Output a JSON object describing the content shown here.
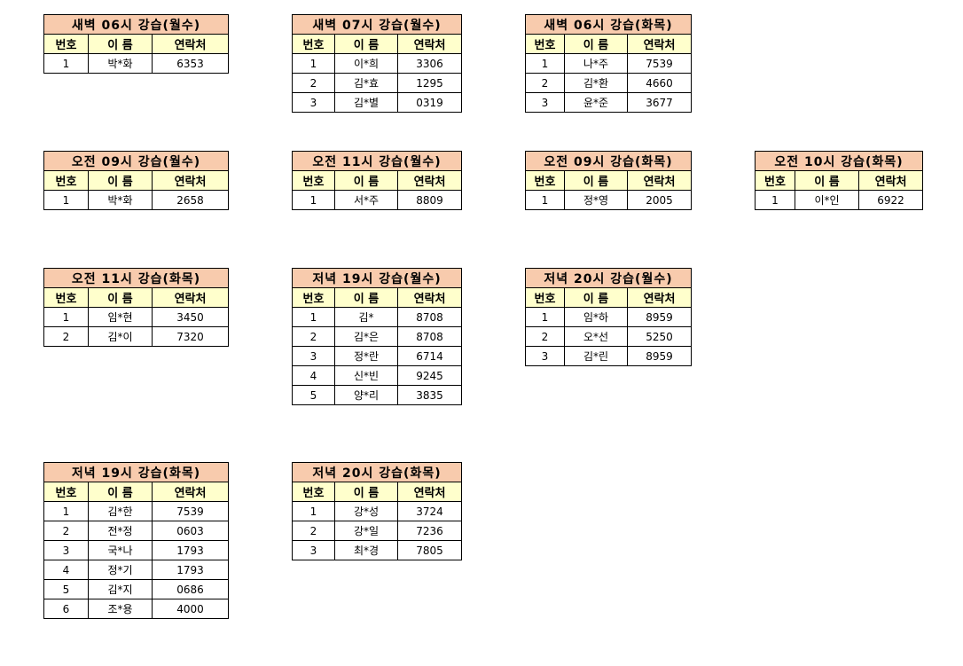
{
  "headers": {
    "num": "번호",
    "name": "이 름",
    "phone": "연락처"
  },
  "colors": {
    "title_bg": "#f8cbad",
    "header_bg": "#ffffcc"
  },
  "tables": [
    {
      "title": "새벽 06시 강습(월수)",
      "rows": [
        [
          "1",
          "박*화",
          "6353"
        ]
      ]
    },
    {
      "title": "새벽 07시 강습(월수)",
      "rows": [
        [
          "1",
          "이*희",
          "3306"
        ],
        [
          "2",
          "김*효",
          "1295"
        ],
        [
          "3",
          "김*별",
          "0319"
        ]
      ]
    },
    {
      "title": "새벽 06시 강습(화목)",
      "rows": [
        [
          "1",
          "나*주",
          "7539"
        ],
        [
          "2",
          "김*환",
          "4660"
        ],
        [
          "3",
          "윤*준",
          "3677"
        ]
      ]
    },
    {
      "title": "오전 09시 강습(월수)",
      "rows": [
        [
          "1",
          "박*화",
          "2658"
        ]
      ]
    },
    {
      "title": "오전 11시 강습(월수)",
      "rows": [
        [
          "1",
          "서*주",
          "8809"
        ]
      ]
    },
    {
      "title": "오전 09시 강습(화목)",
      "rows": [
        [
          "1",
          "정*영",
          "2005"
        ]
      ]
    },
    {
      "title": "오전 10시 강습(화목)",
      "rows": [
        [
          "1",
          "이*인",
          "6922"
        ]
      ]
    },
    {
      "title": "오전 11시 강습(화목)",
      "rows": [
        [
          "1",
          "임*현",
          "3450"
        ],
        [
          "2",
          "김*이",
          "7320"
        ]
      ]
    },
    {
      "title": "저녁 19시 강습(월수)",
      "rows": [
        [
          "1",
          "김*",
          "8708"
        ],
        [
          "2",
          "김*은",
          "8708"
        ],
        [
          "3",
          "정*란",
          "6714"
        ],
        [
          "4",
          "신*빈",
          "9245"
        ],
        [
          "5",
          "양*리",
          "3835"
        ]
      ]
    },
    {
      "title": "저녁 20시 강습(월수)",
      "rows": [
        [
          "1",
          "임*하",
          "8959"
        ],
        [
          "2",
          "오*선",
          "5250"
        ],
        [
          "3",
          "김*린",
          "8959"
        ]
      ]
    },
    {
      "title": "저녁 19시 강습(화목)",
      "rows": [
        [
          "1",
          "김*한",
          "7539"
        ],
        [
          "2",
          "전*정",
          "0603"
        ],
        [
          "3",
          "국*나",
          "1793"
        ],
        [
          "4",
          "정*기",
          "1793"
        ],
        [
          "5",
          "김*지",
          "0686"
        ],
        [
          "6",
          "조*용",
          "4000"
        ]
      ]
    },
    {
      "title": "저녁 20시 강습(화목)",
      "rows": [
        [
          "1",
          "강*성",
          "3724"
        ],
        [
          "2",
          "강*일",
          "7236"
        ],
        [
          "3",
          "최*경",
          "7805"
        ]
      ]
    }
  ]
}
